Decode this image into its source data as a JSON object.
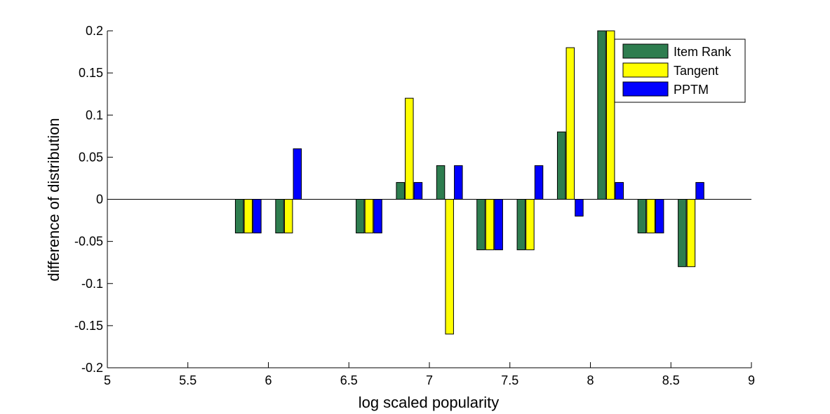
{
  "chart_data": {
    "type": "bar",
    "title": "",
    "xlabel": "log scaled popularity",
    "ylabel": "difference of distribution",
    "xlim": [
      5,
      9
    ],
    "ylim": [
      -0.2,
      0.2
    ],
    "xticks": [
      "5",
      "5.5",
      "6",
      "6.5",
      "7",
      "7.5",
      "8",
      "8.5",
      "9"
    ],
    "yticks": [
      "-0.2",
      "-0.15",
      "-0.1",
      "-0.05",
      "0",
      "0.05",
      "0.1",
      "0.15",
      "0.2"
    ],
    "x": [
      5.875,
      6.125,
      6.625,
      6.875,
      7.125,
      7.375,
      7.625,
      7.875,
      8.125,
      8.375,
      8.625
    ],
    "series": [
      {
        "name": "Item Rank",
        "color": "#2e7d4f",
        "values": [
          -0.04,
          -0.04,
          -0.04,
          0.02,
          0.04,
          -0.06,
          -0.06,
          0.08,
          0.2,
          -0.04,
          -0.08
        ]
      },
      {
        "name": "Tangent",
        "color": "#ffff00",
        "values": [
          -0.04,
          -0.04,
          -0.04,
          0.12,
          -0.16,
          -0.06,
          -0.06,
          0.18,
          0.2,
          -0.04,
          -0.08
        ]
      },
      {
        "name": "PPTM",
        "color": "#0000ff",
        "values": [
          -0.04,
          0.06,
          -0.04,
          0.02,
          0.04,
          -0.06,
          0.04,
          -0.02,
          0.02,
          -0.04,
          0.02
        ]
      }
    ],
    "legend": "top-right",
    "grid": false
  }
}
